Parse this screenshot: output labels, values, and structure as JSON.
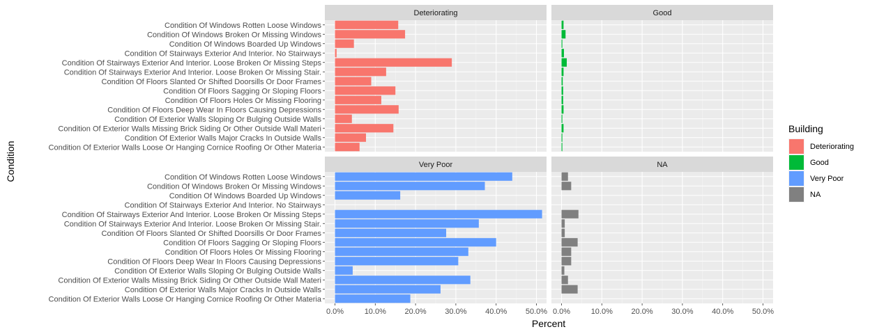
{
  "chart_data": {
    "type": "bar",
    "orientation": "horizontal",
    "xlabel": "Percent",
    "ylabel": "Condition",
    "xlim": [
      0,
      0.5
    ],
    "x_ticks": [
      "0.0%",
      "10.0%",
      "20.0%",
      "30.0%",
      "40.0%",
      "50.0%"
    ],
    "categories": [
      "Condition Of Windows Rotten Loose Windows",
      "Condition Of Windows Broken Or Missing Windows",
      "Condition Of Windows Boarded Up Windows",
      "Condition Of Stairways Exterior And Interior. No Stairways",
      "Condition Of Stairways Exterior And Interior. Loose Broken Or Missing Steps",
      "Condition Of Stairways Exterior And Interior. Loose Broken Or Missing Stair.",
      "Condition Of Floors Slanted Or Shifted Doorsills Or Door Frames",
      "Condition Of Floors Sagging Or Sloping Floors",
      "Condition Of Floors Holes Or Missing Flooring",
      "Condition Of Floors Deep Wear In Floors Causing Depressions",
      "Condition Of Exterior Walls Sloping Or Bulging Outside Walls",
      "Condition Of Exterior Walls Missing Brick Siding Or Other Outside Wall Materi",
      "Condition Of Exterior Walls Major Cracks In Outside Walls",
      "Condition Of Exterior Walls Loose Or Hanging Cornice Roofing Or Other Materia"
    ],
    "facets": [
      "Deteriorating",
      "Good",
      "Very Poor",
      "NA"
    ],
    "legend_title": "Building",
    "legend_position": "right",
    "grid": true,
    "series": [
      {
        "name": "Deteriorating",
        "color": "#F8766D",
        "values": [
          0.157,
          0.174,
          0.047,
          0.004,
          0.29,
          0.127,
          0.09,
          0.15,
          0.115,
          0.158,
          0.042,
          0.145,
          0.077,
          0.061
        ]
      },
      {
        "name": "Good",
        "color": "#00BA38",
        "values": [
          0.005,
          0.01,
          0.002,
          0.006,
          0.013,
          0.005,
          0.003,
          0.004,
          0.004,
          0.005,
          0.002,
          0.005,
          0.002,
          0.002
        ]
      },
      {
        "name": "Very Poor",
        "color": "#619CFF",
        "values": [
          0.44,
          0.372,
          0.162,
          0.0,
          0.514,
          0.357,
          0.276,
          0.4,
          0.331,
          0.306,
          0.044,
          0.336,
          0.262,
          0.187
        ]
      },
      {
        "name": "NA",
        "color": "#808080",
        "values": [
          0.016,
          0.024,
          0.0,
          0.0,
          0.042,
          0.008,
          0.008,
          0.04,
          0.024,
          0.024,
          0.007,
          0.016,
          0.04,
          0.0
        ]
      }
    ]
  }
}
